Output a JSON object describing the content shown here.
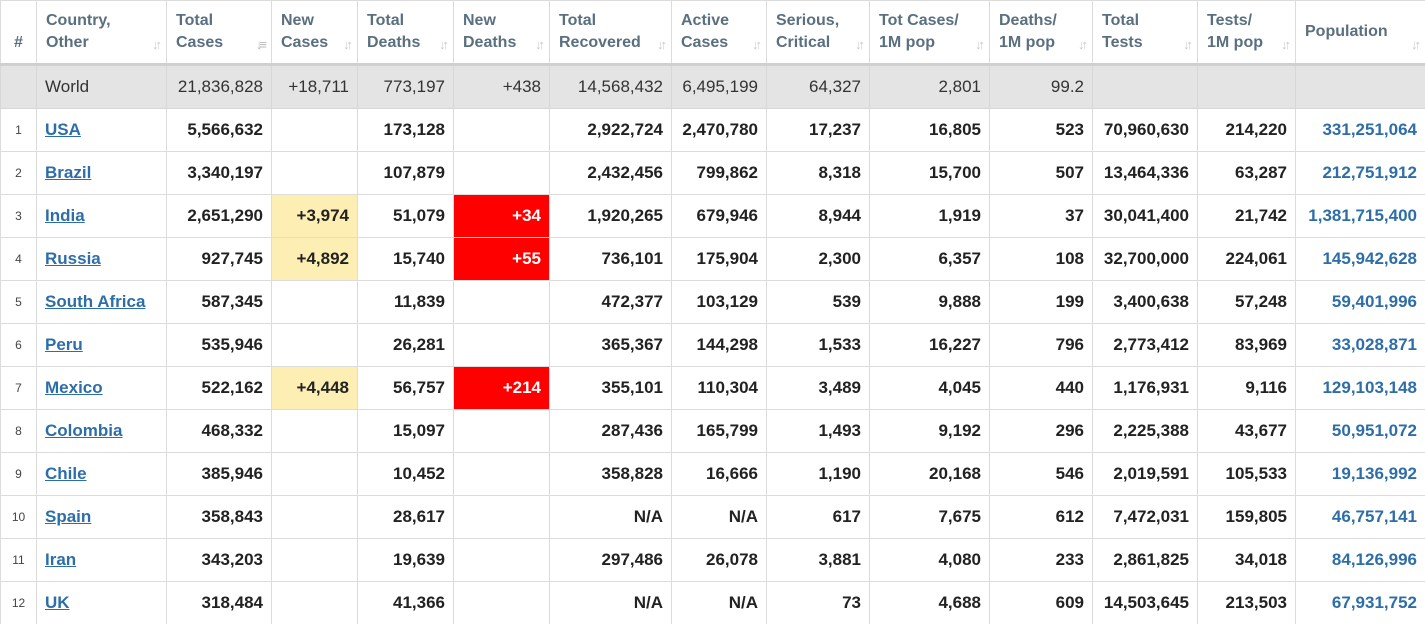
{
  "headers": [
    {
      "line1": "#",
      "line2": "",
      "sortable": false
    },
    {
      "line1": "Country,",
      "line2": "Other",
      "sortable": true
    },
    {
      "line1": "Total",
      "line2": "Cases",
      "sortable": true
    },
    {
      "line1": "New",
      "line2": "Cases",
      "sortable": true
    },
    {
      "line1": "Total",
      "line2": "Deaths",
      "sortable": true
    },
    {
      "line1": "New",
      "line2": "Deaths",
      "sortable": true
    },
    {
      "line1": "Total",
      "line2": "Recovered",
      "sortable": true
    },
    {
      "line1": "Active",
      "line2": "Cases",
      "sortable": true
    },
    {
      "line1": "Serious,",
      "line2": "Critical",
      "sortable": true
    },
    {
      "line1": "Tot Cases/",
      "line2": "1M pop",
      "sortable": true
    },
    {
      "line1": "Deaths/",
      "line2": "1M pop",
      "sortable": true
    },
    {
      "line1": "Total",
      "line2": "Tests",
      "sortable": true
    },
    {
      "line1": "Tests/",
      "line2": "1M pop",
      "sortable": true
    },
    {
      "line1": "",
      "line2": "Population",
      "sortable": true
    }
  ],
  "world": [
    "",
    "World",
    "21,836,828",
    "+18,711",
    "773,197",
    "+438",
    "14,568,432",
    "6,495,199",
    "64,327",
    "2,801",
    "99.2",
    "",
    "",
    ""
  ],
  "rows": [
    [
      "1",
      "USA",
      "5,566,632",
      "",
      "173,128",
      "",
      "2,922,724",
      "2,470,780",
      "17,237",
      "16,805",
      "523",
      "70,960,630",
      "214,220",
      "331,251,064"
    ],
    [
      "2",
      "Brazil",
      "3,340,197",
      "",
      "107,879",
      "",
      "2,432,456",
      "799,862",
      "8,318",
      "15,700",
      "507",
      "13,464,336",
      "63,287",
      "212,751,912"
    ],
    [
      "3",
      "India",
      "2,651,290",
      "+3,974",
      "51,079",
      "+34",
      "1,920,265",
      "679,946",
      "8,944",
      "1,919",
      "37",
      "30,041,400",
      "21,742",
      "1,381,715,400"
    ],
    [
      "4",
      "Russia",
      "927,745",
      "+4,892",
      "15,740",
      "+55",
      "736,101",
      "175,904",
      "2,300",
      "6,357",
      "108",
      "32,700,000",
      "224,061",
      "145,942,628"
    ],
    [
      "5",
      "South Africa",
      "587,345",
      "",
      "11,839",
      "",
      "472,377",
      "103,129",
      "539",
      "9,888",
      "199",
      "3,400,638",
      "57,248",
      "59,401,996"
    ],
    [
      "6",
      "Peru",
      "535,946",
      "",
      "26,281",
      "",
      "365,367",
      "144,298",
      "1,533",
      "16,227",
      "796",
      "2,773,412",
      "83,969",
      "33,028,871"
    ],
    [
      "7",
      "Mexico",
      "522,162",
      "+4,448",
      "56,757",
      "+214",
      "355,101",
      "110,304",
      "3,489",
      "4,045",
      "440",
      "1,176,931",
      "9,116",
      "129,103,148"
    ],
    [
      "8",
      "Colombia",
      "468,332",
      "",
      "15,097",
      "",
      "287,436",
      "165,799",
      "1,493",
      "9,192",
      "296",
      "2,225,388",
      "43,677",
      "50,951,072"
    ],
    [
      "9",
      "Chile",
      "385,946",
      "",
      "10,452",
      "",
      "358,828",
      "16,666",
      "1,190",
      "20,168",
      "546",
      "2,019,591",
      "105,533",
      "19,136,992"
    ],
    [
      "10",
      "Spain",
      "358,843",
      "",
      "28,617",
      "",
      "N/A",
      "N/A",
      "617",
      "7,675",
      "612",
      "7,472,031",
      "159,805",
      "46,757,141"
    ],
    [
      "11",
      "Iran",
      "343,203",
      "",
      "19,639",
      "",
      "297,486",
      "26,078",
      "3,881",
      "4,080",
      "233",
      "2,861,825",
      "34,018",
      "84,126,996"
    ],
    [
      "12",
      "UK",
      "318,484",
      "",
      "41,366",
      "",
      "N/A",
      "N/A",
      "73",
      "4,688",
      "609",
      "14,503,645",
      "213,503",
      "67,931,752"
    ]
  ],
  "colors": {
    "new_cases_bg": "#fdeeb3",
    "new_deaths_bg": "#ff0000",
    "link": "#2e6ea8",
    "world_row_bg": "#e4e4e4",
    "header_text": "#5a6f80"
  },
  "icons": {
    "sort": "sort-arrows-icon",
    "sort_active": "sort-desc-icon"
  }
}
